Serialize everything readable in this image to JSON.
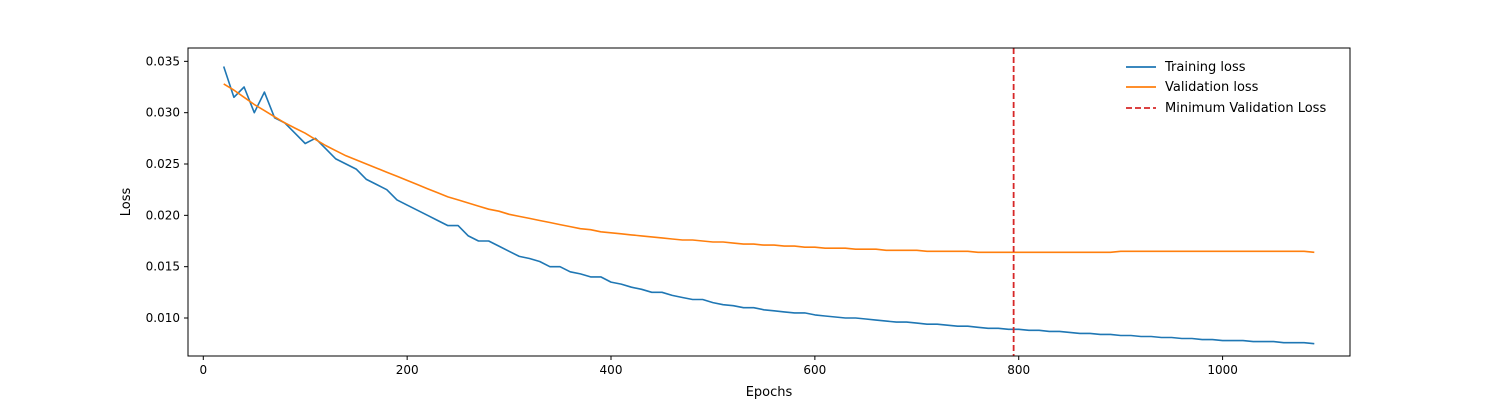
{
  "chart_data": {
    "type": "line",
    "title": "",
    "xlabel": "Epochs",
    "ylabel": "Loss",
    "xlim": [
      -15,
      1125
    ],
    "ylim": [
      0.0063,
      0.0363
    ],
    "xticks": [
      0,
      200,
      400,
      600,
      800,
      1000
    ],
    "yticks": [
      0.01,
      0.015,
      0.02,
      0.025,
      0.03,
      0.035
    ],
    "ytick_labels": [
      "0.010",
      "0.015",
      "0.020",
      "0.025",
      "0.030",
      "0.035"
    ],
    "grid": false,
    "legend_position": "top-right",
    "colors": {
      "training": "#1f77b4",
      "validation": "#ff7f0e",
      "min_line": "#d62728"
    },
    "series": [
      {
        "name": "Training loss",
        "color": "#1f77b4",
        "x": [
          20,
          30,
          40,
          50,
          60,
          70,
          80,
          90,
          100,
          110,
          120,
          130,
          140,
          150,
          160,
          170,
          180,
          190,
          200,
          210,
          220,
          230,
          240,
          250,
          260,
          270,
          280,
          290,
          300,
          310,
          320,
          330,
          340,
          350,
          360,
          370,
          380,
          390,
          400,
          410,
          420,
          430,
          440,
          450,
          460,
          470,
          480,
          490,
          500,
          510,
          520,
          530,
          540,
          550,
          560,
          570,
          580,
          590,
          600,
          610,
          620,
          630,
          640,
          650,
          660,
          670,
          680,
          690,
          700,
          710,
          720,
          730,
          740,
          750,
          760,
          770,
          780,
          790,
          800,
          810,
          820,
          830,
          840,
          850,
          860,
          870,
          880,
          890,
          900,
          910,
          920,
          930,
          940,
          950,
          960,
          970,
          980,
          990,
          1000,
          1010,
          1020,
          1030,
          1040,
          1050,
          1060,
          1070,
          1080,
          1090
        ],
        "y": [
          0.0345,
          0.0315,
          0.0325,
          0.03,
          0.032,
          0.0295,
          0.029,
          0.028,
          0.027,
          0.0275,
          0.0265,
          0.0255,
          0.025,
          0.0245,
          0.0235,
          0.023,
          0.0225,
          0.0215,
          0.021,
          0.0205,
          0.02,
          0.0195,
          0.019,
          0.019,
          0.018,
          0.0175,
          0.0175,
          0.017,
          0.0165,
          0.016,
          0.0158,
          0.0155,
          0.015,
          0.015,
          0.0145,
          0.0143,
          0.014,
          0.014,
          0.0135,
          0.0133,
          0.013,
          0.0128,
          0.0125,
          0.0125,
          0.0122,
          0.012,
          0.0118,
          0.0118,
          0.0115,
          0.0113,
          0.0112,
          0.011,
          0.011,
          0.0108,
          0.0107,
          0.0106,
          0.0105,
          0.0105,
          0.0103,
          0.0102,
          0.0101,
          0.01,
          0.01,
          0.0099,
          0.0098,
          0.0097,
          0.0096,
          0.0096,
          0.0095,
          0.0094,
          0.0094,
          0.0093,
          0.0092,
          0.0092,
          0.0091,
          0.009,
          0.009,
          0.0089,
          0.0089,
          0.0088,
          0.0088,
          0.0087,
          0.0087,
          0.0086,
          0.0085,
          0.0085,
          0.0084,
          0.0084,
          0.0083,
          0.0083,
          0.0082,
          0.0082,
          0.0081,
          0.0081,
          0.008,
          0.008,
          0.0079,
          0.0079,
          0.0078,
          0.0078,
          0.0078,
          0.0077,
          0.0077,
          0.0077,
          0.0076,
          0.0076,
          0.0076,
          0.0075
        ]
      },
      {
        "name": "Validation loss",
        "color": "#ff7f0e",
        "x": [
          20,
          30,
          40,
          50,
          60,
          70,
          80,
          90,
          100,
          110,
          120,
          130,
          140,
          150,
          160,
          170,
          180,
          190,
          200,
          210,
          220,
          230,
          240,
          250,
          260,
          270,
          280,
          290,
          300,
          310,
          320,
          330,
          340,
          350,
          360,
          370,
          380,
          390,
          400,
          410,
          420,
          430,
          440,
          450,
          460,
          470,
          480,
          490,
          500,
          510,
          520,
          530,
          540,
          550,
          560,
          570,
          580,
          590,
          600,
          610,
          620,
          630,
          640,
          650,
          660,
          670,
          680,
          690,
          700,
          710,
          720,
          730,
          740,
          750,
          760,
          770,
          780,
          790,
          800,
          810,
          820,
          830,
          840,
          850,
          860,
          870,
          880,
          890,
          900,
          910,
          920,
          930,
          940,
          950,
          960,
          970,
          980,
          990,
          1000,
          1010,
          1020,
          1030,
          1040,
          1050,
          1060,
          1070,
          1080,
          1090
        ],
        "y": [
          0.0328,
          0.0322,
          0.0315,
          0.0308,
          0.0302,
          0.0296,
          0.029,
          0.0285,
          0.028,
          0.0274,
          0.0268,
          0.0263,
          0.0258,
          0.0254,
          0.025,
          0.0246,
          0.0242,
          0.0238,
          0.0234,
          0.023,
          0.0226,
          0.0222,
          0.0218,
          0.0215,
          0.0212,
          0.0209,
          0.0206,
          0.0204,
          0.0201,
          0.0199,
          0.0197,
          0.0195,
          0.0193,
          0.0191,
          0.0189,
          0.0187,
          0.0186,
          0.0184,
          0.0183,
          0.0182,
          0.0181,
          0.018,
          0.0179,
          0.0178,
          0.0177,
          0.0176,
          0.0176,
          0.0175,
          0.0174,
          0.0174,
          0.0173,
          0.0172,
          0.0172,
          0.0171,
          0.0171,
          0.017,
          0.017,
          0.0169,
          0.0169,
          0.0168,
          0.0168,
          0.0168,
          0.0167,
          0.0167,
          0.0167,
          0.0166,
          0.0166,
          0.0166,
          0.0166,
          0.0165,
          0.0165,
          0.0165,
          0.0165,
          0.0165,
          0.0164,
          0.0164,
          0.0164,
          0.0164,
          0.0164,
          0.0164,
          0.0164,
          0.0164,
          0.0164,
          0.0164,
          0.0164,
          0.0164,
          0.0164,
          0.0164,
          0.0165,
          0.0165,
          0.0165,
          0.0165,
          0.0165,
          0.0165,
          0.0165,
          0.0165,
          0.0165,
          0.0165,
          0.0165,
          0.0165,
          0.0165,
          0.0165,
          0.0165,
          0.0165,
          0.0165,
          0.0165,
          0.0165,
          0.0164
        ]
      }
    ],
    "vline": {
      "name": "Minimum Validation Loss",
      "x": 795,
      "color": "#d62728",
      "style": "dashed"
    }
  }
}
